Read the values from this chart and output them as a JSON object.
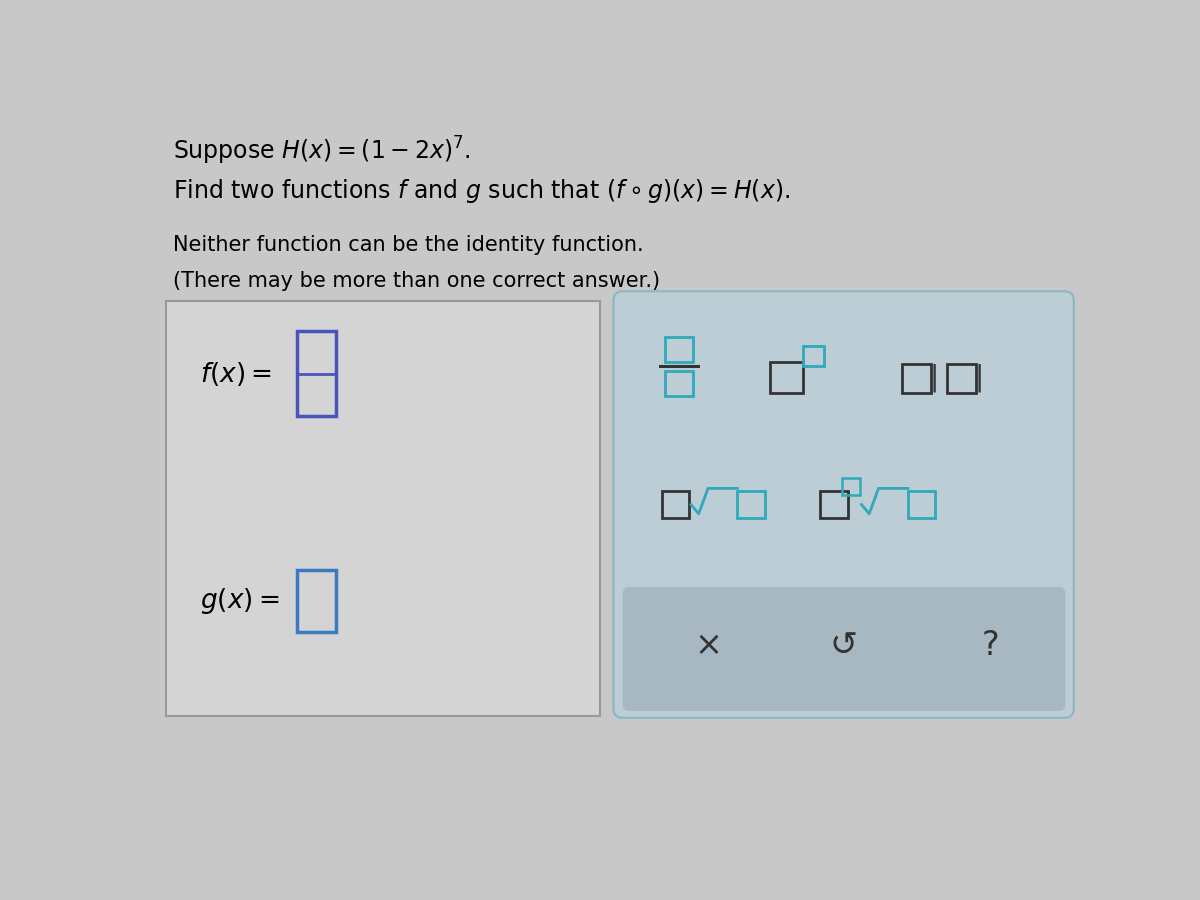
{
  "bg_color": "#c8c8c8",
  "left_box_bg": "#d4d4d4",
  "left_box_edge": "#999999",
  "right_box_bg": "#bccdd5",
  "right_box_edge": "#8ab8c2",
  "bottom_strip_bg": "#a8b8c2",
  "title_line1": "Suppose $H(x) = (1-2x)^7$.",
  "title_line2": "Find two functions $f$ and $g$ such that $(f\\circ g)(x) = H(x)$.",
  "line3": "Neither function can be the identity function.",
  "line4": "(There may be more than one correct answer.)",
  "fx_label": "$f(x) =$",
  "gx_label": "$g(x) =$",
  "input_box_color_f": "#4a55bb",
  "input_box_color_g": "#3a7abf",
  "teal_color": "#2eaabb",
  "dark_color": "#333333"
}
